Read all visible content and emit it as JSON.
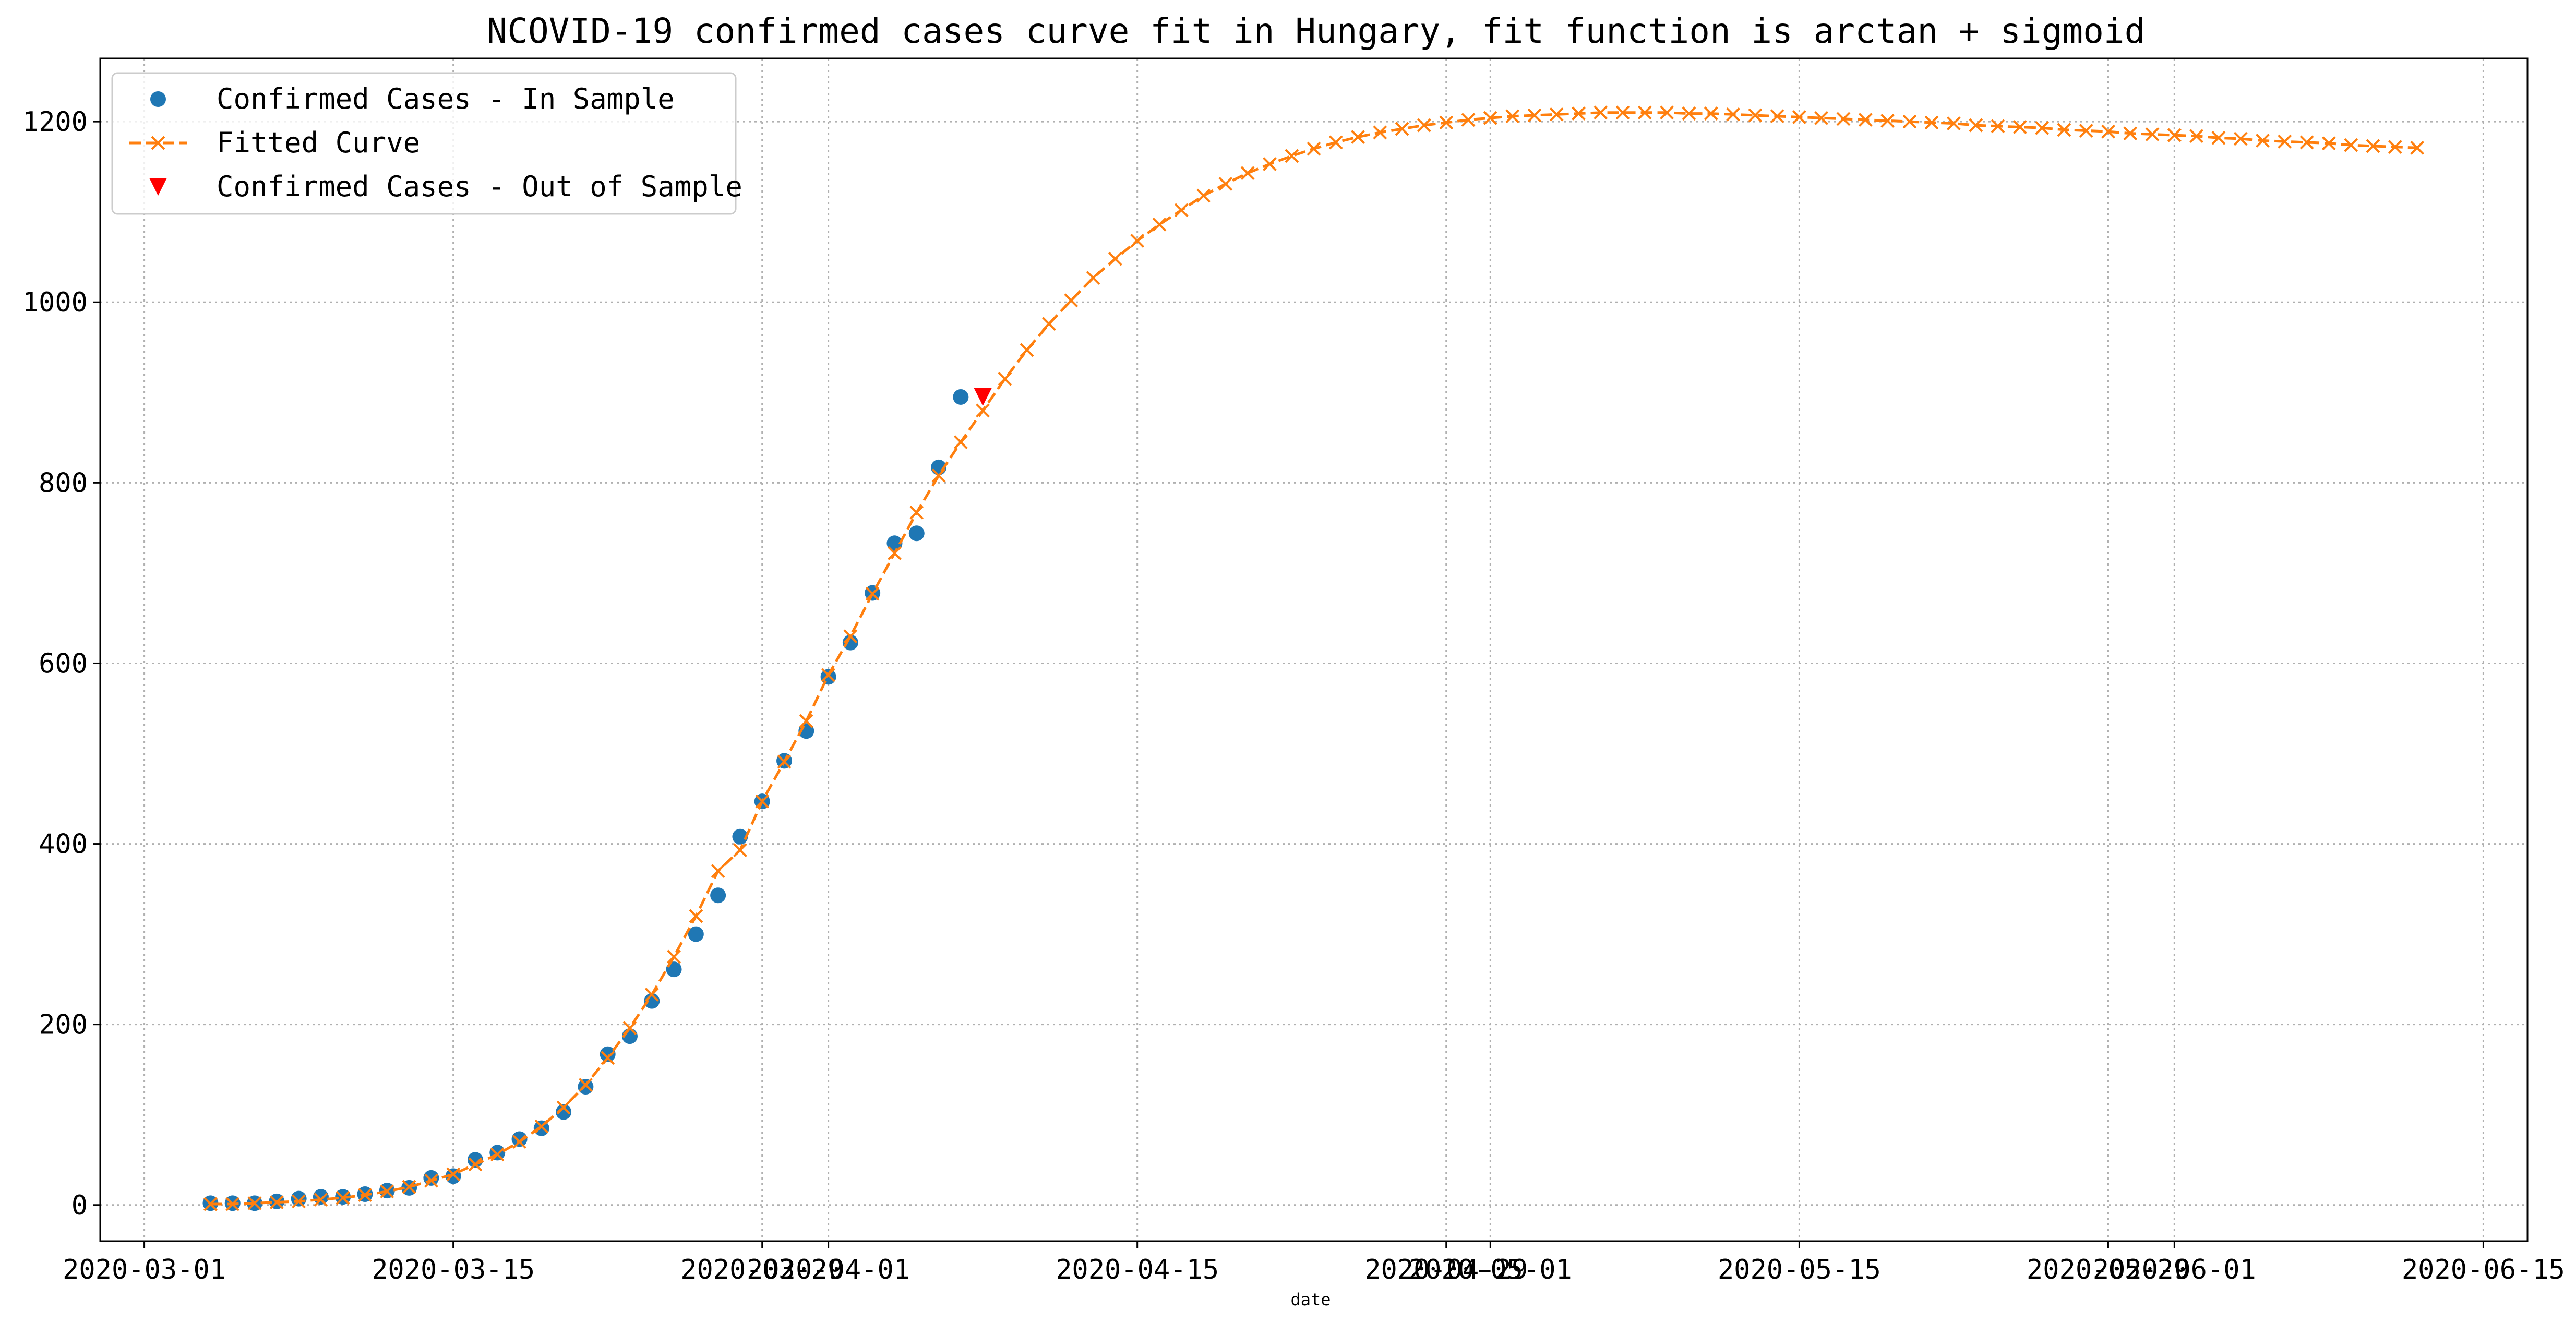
{
  "chart_data": {
    "type": "line",
    "title": "NCOVID-19 confirmed cases curve fit in Hungary, fit function is arctan + sigmoid",
    "xlabel": "date",
    "ylabel": "",
    "xlim": [
      "2020-02-28",
      "2020-06-17"
    ],
    "ylim": [
      -40,
      1270
    ],
    "grid": true,
    "legend_position": "top-left",
    "x_ticks": [
      "2020-03-01",
      "2020-03-15",
      "2020-03-29",
      "2020-04-01",
      "2020-04-15",
      "2020-04-29",
      "2020-05-01",
      "2020-05-15",
      "2020-05-29",
      "2020-06-01",
      "2020-06-15"
    ],
    "x_tick_labels": [
      "2020-03-01",
      "2020-03-15",
      "2020-03-29",
      "2020-04-01",
      "2020-04-15",
      "2020-04-29",
      "2020-05-01",
      "2020-05-15",
      "2020-05-29",
      "2020-06-01",
      "2020-06-15"
    ],
    "y_ticks": [
      0,
      200,
      400,
      600,
      800,
      1000,
      1200
    ],
    "y_tick_labels": [
      "0",
      "200",
      "400",
      "600",
      "800",
      "1000",
      "1200"
    ],
    "series": [
      {
        "name": "Confirmed Cases - In Sample",
        "kind": "scatter",
        "marker": "circle",
        "color": "#1f77b4",
        "x": [
          "2020-03-04",
          "2020-03-05",
          "2020-03-06",
          "2020-03-07",
          "2020-03-08",
          "2020-03-09",
          "2020-03-10",
          "2020-03-11",
          "2020-03-12",
          "2020-03-13",
          "2020-03-14",
          "2020-03-15",
          "2020-03-16",
          "2020-03-17",
          "2020-03-18",
          "2020-03-19",
          "2020-03-20",
          "2020-03-21",
          "2020-03-22",
          "2020-03-23",
          "2020-03-24",
          "2020-03-25",
          "2020-03-26",
          "2020-03-27",
          "2020-03-28",
          "2020-03-29",
          "2020-03-30",
          "2020-03-31",
          "2020-04-01",
          "2020-04-02",
          "2020-04-03",
          "2020-04-04",
          "2020-04-05",
          "2020-04-06",
          "2020-04-07"
        ],
        "y": [
          2,
          2,
          2,
          4,
          7,
          9,
          9,
          12,
          16,
          19,
          30,
          32,
          50,
          58,
          73,
          85,
          103,
          131,
          167,
          187,
          226,
          261,
          300,
          343,
          408,
          447,
          492,
          525,
          585,
          623,
          678,
          733,
          744,
          817,
          895
        ]
      },
      {
        "name": "Fitted Curve",
        "kind": "line",
        "marker": "x",
        "linestyle": "dashed",
        "color": "#ff7f0e",
        "x": [
          "2020-03-04",
          "2020-03-05",
          "2020-03-06",
          "2020-03-07",
          "2020-03-08",
          "2020-03-09",
          "2020-03-10",
          "2020-03-11",
          "2020-03-12",
          "2020-03-13",
          "2020-03-14",
          "2020-03-15",
          "2020-03-16",
          "2020-03-17",
          "2020-03-18",
          "2020-03-19",
          "2020-03-20",
          "2020-03-21",
          "2020-03-22",
          "2020-03-23",
          "2020-03-24",
          "2020-03-25",
          "2020-03-26",
          "2020-03-27",
          "2020-03-28",
          "2020-03-29",
          "2020-03-30",
          "2020-03-31",
          "2020-04-01",
          "2020-04-02",
          "2020-04-03",
          "2020-04-04",
          "2020-04-05",
          "2020-04-06",
          "2020-04-07",
          "2020-04-08",
          "2020-04-09",
          "2020-04-10",
          "2020-04-11",
          "2020-04-12",
          "2020-04-13",
          "2020-04-14",
          "2020-04-15",
          "2020-04-16",
          "2020-04-17",
          "2020-04-18",
          "2020-04-19",
          "2020-04-20",
          "2020-04-21",
          "2020-04-22",
          "2020-04-23",
          "2020-04-24",
          "2020-04-25",
          "2020-04-26",
          "2020-04-27",
          "2020-04-28",
          "2020-04-29",
          "2020-04-30",
          "2020-05-01",
          "2020-05-02",
          "2020-05-03",
          "2020-05-04",
          "2020-05-05",
          "2020-05-06",
          "2020-05-07",
          "2020-05-08",
          "2020-05-09",
          "2020-05-10",
          "2020-05-11",
          "2020-05-12",
          "2020-05-13",
          "2020-05-14",
          "2020-05-15",
          "2020-05-16",
          "2020-05-17",
          "2020-05-18",
          "2020-05-19",
          "2020-05-20",
          "2020-05-21",
          "2020-05-22",
          "2020-05-23",
          "2020-05-24",
          "2020-05-25",
          "2020-05-26",
          "2020-05-27",
          "2020-05-28",
          "2020-05-29",
          "2020-05-30",
          "2020-05-31",
          "2020-06-01",
          "2020-06-02",
          "2020-06-03",
          "2020-06-04",
          "2020-06-05",
          "2020-06-06",
          "2020-06-07",
          "2020-06-08",
          "2020-06-09",
          "2020-06-10",
          "2020-06-11",
          "2020-06-12"
        ],
        "y": [
          1,
          1,
          2,
          3,
          4,
          6,
          8,
          11,
          15,
          20,
          27,
          34,
          45,
          56,
          70,
          87,
          108,
          133,
          163,
          196,
          233,
          275,
          320,
          370,
          393,
          447,
          491,
          536,
          587,
          630,
          677,
          722,
          767,
          808,
          845,
          880,
          915,
          947,
          976,
          1002,
          1027,
          1048,
          1068,
          1086,
          1102,
          1118,
          1131,
          1143,
          1153,
          1162,
          1170,
          1177,
          1183,
          1188,
          1192,
          1196,
          1199,
          1202,
          1204,
          1206,
          1207,
          1208,
          1209,
          1210,
          1210,
          1210,
          1210,
          1209,
          1209,
          1208,
          1207,
          1206,
          1205,
          1204,
          1203,
          1202,
          1201,
          1200,
          1199,
          1198,
          1196,
          1195,
          1194,
          1193,
          1191,
          1190,
          1189,
          1187,
          1186,
          1185,
          1184,
          1182,
          1181,
          1179,
          1178,
          1177,
          1176,
          1174,
          1173,
          1172,
          1171
        ]
      },
      {
        "name": "Confirmed Cases - Out of Sample",
        "kind": "scatter",
        "marker": "triangle-down",
        "color": "#ff0000",
        "x": [
          "2020-04-08"
        ],
        "y": [
          895
        ]
      }
    ]
  }
}
